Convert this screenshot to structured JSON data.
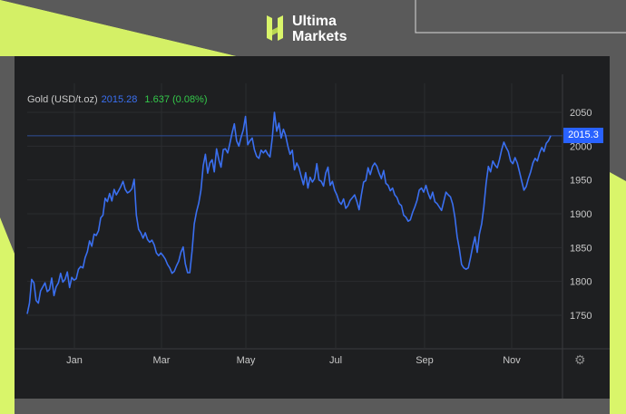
{
  "brand": {
    "name_line1": "Ultima",
    "name_line2": "Markets"
  },
  "legend": {
    "instrument": "Gold (USD/t.oz)",
    "price": "2015.28",
    "change": "1.637 (0.08%)"
  },
  "last_price_tag": "2015.3",
  "colors": {
    "line": "#3a6ff0",
    "tag": "#2962ff",
    "change": "#34c84a",
    "accent": "#d9f56a"
  },
  "icons": {
    "settings": "gear-icon",
    "logo": "ultima-logo-icon"
  },
  "chart_data": {
    "type": "line",
    "title": "",
    "xlabel": "",
    "ylabel": "",
    "ylim": [
      1700,
      2080
    ],
    "y_ticks": [
      1750,
      1800,
      1850,
      1900,
      1950,
      2000,
      2050
    ],
    "x_ticks": [
      "Jan",
      "Mar",
      "May",
      "Jul",
      "Sep",
      "Nov"
    ],
    "last_value": 2015.3,
    "series": [
      {
        "values": [
          1752,
          1768,
          1803,
          1798,
          1772,
          1768,
          1786,
          1792,
          1798,
          1785,
          1788,
          1805,
          1779,
          1792,
          1798,
          1812,
          1799,
          1803,
          1814,
          1791,
          1806,
          1802,
          1804,
          1818,
          1822,
          1820,
          1835,
          1844,
          1860,
          1852,
          1870,
          1868,
          1875,
          1894,
          1898,
          1923,
          1918,
          1930,
          1919,
          1936,
          1928,
          1934,
          1940,
          1948,
          1936,
          1931,
          1933,
          1937,
          1951,
          1898,
          1877,
          1872,
          1864,
          1872,
          1862,
          1858,
          1861,
          1854,
          1842,
          1838,
          1842,
          1838,
          1833,
          1825,
          1820,
          1812,
          1815,
          1823,
          1830,
          1843,
          1851,
          1826,
          1813,
          1813,
          1845,
          1885,
          1903,
          1916,
          1935,
          1971,
          1988,
          1960,
          1975,
          1980,
          1962,
          1996,
          1980,
          1969,
          1995,
          1996,
          1990,
          2004,
          2020,
          2033,
          2008,
          2000,
          2013,
          2024,
          2044,
          2002,
          2008,
          2012,
          1995,
          1985,
          1982,
          1994,
          1990,
          1994,
          1988,
          1984,
          2012,
          2050,
          2022,
          2034,
          2012,
          2025,
          2016,
          2000,
          1988,
          1994,
          1965,
          1975,
          1968,
          1955,
          1943,
          1961,
          1938,
          1954,
          1947,
          1952,
          1974,
          1950,
          1948,
          1941,
          1960,
          1969,
          1942,
          1948,
          1935,
          1928,
          1918,
          1914,
          1922,
          1908,
          1912,
          1920,
          1924,
          1928,
          1918,
          1906,
          1928,
          1947,
          1949,
          1968,
          1958,
          1970,
          1975,
          1970,
          1960,
          1952,
          1964,
          1945,
          1942,
          1934,
          1938,
          1928,
          1924,
          1915,
          1912,
          1898,
          1895,
          1889,
          1891,
          1902,
          1910,
          1920,
          1935,
          1938,
          1932,
          1942,
          1930,
          1922,
          1932,
          1918,
          1915,
          1910,
          1905,
          1918,
          1932,
          1928,
          1925,
          1914,
          1895,
          1866,
          1848,
          1825,
          1820,
          1818,
          1820,
          1835,
          1852,
          1866,
          1843,
          1870,
          1885,
          1910,
          1945,
          1970,
          1962,
          1978,
          1972,
          1968,
          1980,
          1995,
          2006,
          1998,
          1992,
          1978,
          1974,
          1983,
          1975,
          1962,
          1948,
          1935,
          1940,
          1952,
          1962,
          1975,
          1982,
          1978,
          1990,
          1998,
          1992,
          2004,
          2008,
          2015.3
        ]
      }
    ]
  }
}
